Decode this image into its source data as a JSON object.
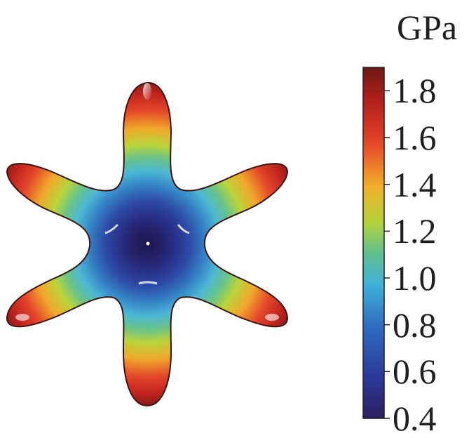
{
  "colorbar": {
    "unit": "GPa",
    "min": 0.4,
    "max": 1.9,
    "ticks": [
      {
        "value": 1.8,
        "label": "1.8"
      },
      {
        "value": 1.6,
        "label": "1.6"
      },
      {
        "value": 1.4,
        "label": "1.4"
      },
      {
        "value": 1.2,
        "label": "1.2"
      },
      {
        "value": 1.0,
        "label": "1.0"
      },
      {
        "value": 0.8,
        "label": "0.8"
      },
      {
        "value": 0.6,
        "label": "0.6"
      },
      {
        "value": 0.4,
        "label": "0.4"
      }
    ],
    "colormap": [
      "#2d1e5f",
      "#2b3a9a",
      "#2f6cc0",
      "#3fb0d8",
      "#5fc08f",
      "#b5d33a",
      "#f2b02a",
      "#e8472a",
      "#b3201c",
      "#6e1a14"
    ]
  },
  "surface": {
    "lobes": 6,
    "center_value": 0.4,
    "tip_value": 1.8
  }
}
